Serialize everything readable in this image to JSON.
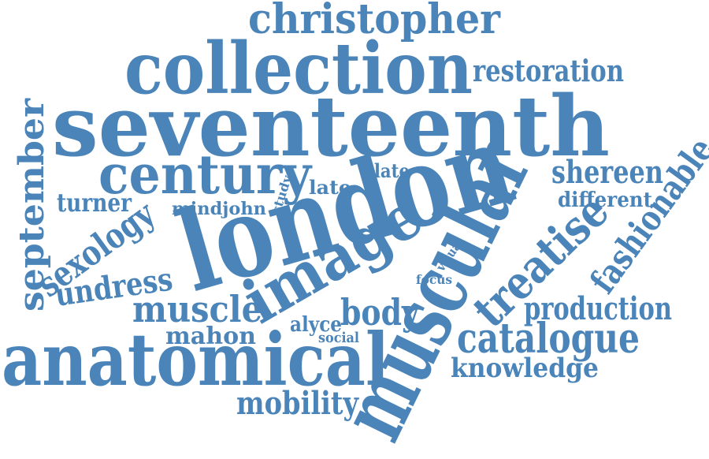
{
  "colors": {
    "word": "#4a84b8",
    "background": "#ffffff"
  },
  "words": [
    {
      "id": "christopher",
      "text": "christopher"
    },
    {
      "id": "collection",
      "text": "collection"
    },
    {
      "id": "restoration",
      "text": "restoration"
    },
    {
      "id": "seventeenth",
      "text": "seventeenth"
    },
    {
      "id": "september",
      "text": "september"
    },
    {
      "id": "century",
      "text": "century"
    },
    {
      "id": "plate",
      "text": "plate"
    },
    {
      "id": "shereen",
      "text": "shereen"
    },
    {
      "id": "fashionable",
      "text": "fashionable"
    },
    {
      "id": "turner",
      "text": "turner"
    },
    {
      "id": "study",
      "text": "study"
    },
    {
      "id": "late",
      "text": "late"
    },
    {
      "id": "different",
      "text": "different"
    },
    {
      "id": "sexology",
      "text": "sexology"
    },
    {
      "id": "mindjohn",
      "text": "mindjohn"
    },
    {
      "id": "london",
      "text": "london"
    },
    {
      "id": "muscular",
      "text": "muscular"
    },
    {
      "id": "treatise",
      "text": "treatise"
    },
    {
      "id": "undress",
      "text": "undress"
    },
    {
      "id": "image",
      "text": "image"
    },
    {
      "id": "visual",
      "text": "visual"
    },
    {
      "id": "focus",
      "text": "focus"
    },
    {
      "id": "muscle",
      "text": "muscle"
    },
    {
      "id": "production",
      "text": "production"
    },
    {
      "id": "body",
      "text": "body"
    },
    {
      "id": "alyce",
      "text": "alyce"
    },
    {
      "id": "mahon",
      "text": "mahon"
    },
    {
      "id": "social",
      "text": "social"
    },
    {
      "id": "catalogue",
      "text": "catalogue"
    },
    {
      "id": "anatomical",
      "text": "anatomical"
    },
    {
      "id": "knowledge",
      "text": "knowledge"
    },
    {
      "id": "mobility",
      "text": "mobility"
    }
  ]
}
